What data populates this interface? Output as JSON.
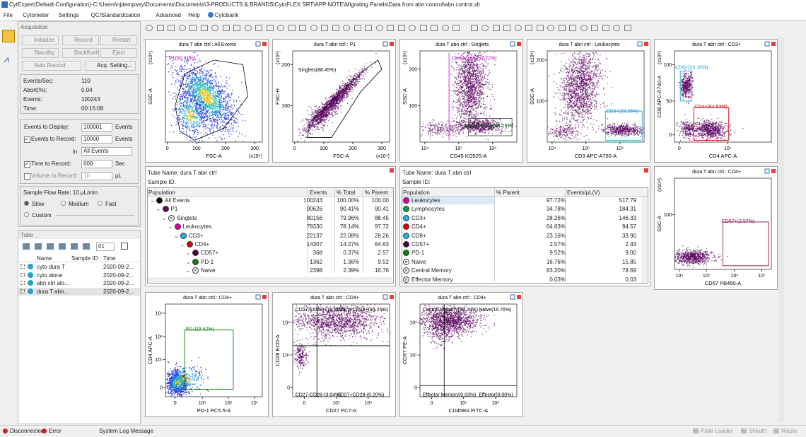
{
  "title_bar": "CytExpert(Default-Configuration)-C:\\Users\\njdempsey\\Documents\\Documents\\3-PRODUCTS & BRANDS\\CytoFLEX SRT\\APP NOTE\\Migrating Panels\\Data from abn control\\abn control.xlt",
  "menu": [
    "File",
    "Cytometer",
    "Settings",
    "QC/Standardization",
    "Advanced",
    "Help",
    "Cytobank"
  ],
  "acquisition": {
    "title": "Acquisition",
    "buttons": [
      "Initialize",
      "Record",
      "Restart",
      "Standby",
      "Backflush",
      "Eject",
      "Auto Record",
      "Acq. Setting..."
    ],
    "stats": [
      {
        "label": "Events/Sec:",
        "value": "110"
      },
      {
        "label": "Abort(%):",
        "value": "0.04"
      },
      {
        "label": "Events:",
        "value": "100243"
      },
      {
        "label": "Time:",
        "value": "00:15:08"
      }
    ],
    "events_to_display": {
      "label": "Events to Display:",
      "value": "100001",
      "unit": "Events"
    },
    "events_to_record": {
      "label": "Events to Record:",
      "value": "10000",
      "unit": "Events"
    },
    "record_in": {
      "label": "in",
      "value": "All Events"
    },
    "time_to_record": {
      "label": "Time to Record:",
      "value": "600",
      "unit": "Sec"
    },
    "volume_to_record": {
      "label": "Volume to Record:",
      "value": "10",
      "unit": "μL"
    },
    "flow_rate": "Sample Flow Rate:  10 μL/min",
    "flow_options": [
      "Slow",
      "Medium",
      "Fast",
      "Custom"
    ]
  },
  "tube": {
    "title": "Tube",
    "selector": "01",
    "columns": [
      "Name",
      "Sample ID",
      "Time"
    ],
    "rows": [
      {
        "name": "cyto dura T",
        "time": "2020-09-2..."
      },
      {
        "name": "cyto alone",
        "time": "2020-09-2..."
      },
      {
        "name": "abn ctrl alo...",
        "time": "2020-09-2..."
      },
      {
        "name": "dura T abn...",
        "time": "2020-09-2..."
      }
    ]
  },
  "plots": [
    {
      "title": "dura T abn ctrl : All Events",
      "gates": [
        "P1(90.41%)"
      ],
      "x_label": "FSC-A",
      "y_label": "SSC-A",
      "x_ticks": [
        "0",
        "100",
        "200",
        "300"
      ],
      "x_exp": "(x10⁴)",
      "y_exp": "(x10⁴)"
    },
    {
      "title": "dura T abn ctrl : P1",
      "gates": [
        "Singlets(88.45%)"
      ],
      "x_label": "FSC-A",
      "y_label": "FSC-H",
      "x_ticks": [
        "0",
        "100",
        "200",
        "300"
      ],
      "y_ticks": [
        "100",
        "200"
      ],
      "x_exp": "(x10⁴)",
      "y_exp": "(x10⁴)"
    },
    {
      "title": "dura T abn ctrl : Singlets",
      "gates": [
        "Leukocytes(97.72%)",
        "Lymphocytes(34.78%)"
      ],
      "x_label": "CD45 KO525-A",
      "y_label": "SSC-A",
      "x_ticks": [
        "10⁴",
        "10⁵",
        "10⁶"
      ],
      "y_ticks": [
        "100",
        "200"
      ],
      "y_exp": "(x10⁴)"
    },
    {
      "title": "dura T abn ctrl : Leukocytes",
      "gates": [
        "CD3+(28.26%)"
      ],
      "x_label": "CD3 APC-A750-A",
      "y_label": "SSC-A",
      "x_ticks": [
        "10⁴",
        "10⁵",
        "10⁶"
      ],
      "y_ticks": [
        "100",
        "200"
      ],
      "y_exp": "(x10⁴)"
    },
    {
      "title": "dura T abn ctrl : CD3+",
      "gates": [
        "CD8+(23.16%)",
        "CD4+(64.63%)"
      ],
      "x_label": "CD4 APC-A",
      "y_label": "CD8 APC-A700-A",
      "x_ticks": [
        "0",
        "10⁵"
      ],
      "y_ticks": [
        "0",
        "50",
        "100"
      ],
      "y_exp": "(x10⁴)"
    },
    {
      "title": "dura T abn ctrl : CD4+",
      "gates": [
        "CD57+(2.57%)"
      ],
      "x_label": "CD57 PB450-A",
      "y_label": "SSC-A",
      "x_ticks": [
        "10⁴",
        "10⁵",
        "10⁶",
        "10⁷"
      ],
      "y_ticks": [
        "100"
      ],
      "y_exp": "(x10⁴)"
    },
    {
      "title": "dura T abn ctrl : CD4+",
      "gates": [
        "PD-1(9.52%)"
      ],
      "x_label": "PD-1 PC5.5-A",
      "y_label": "CD4 APC-A",
      "x_ticks": [
        "0",
        "10⁵",
        "10⁶",
        "10⁷"
      ],
      "y_ticks": [
        "0",
        "10⁵",
        "10⁶",
        "10⁷"
      ]
    },
    {
      "title": "dura T abn ctrl : CD4+",
      "gates": [
        "CD27-CD28+(13.51%)",
        "CD27+CD28+(83.25%)",
        "CD27-CD28-(3.04%)",
        "CD27+CD28-(0.20%)"
      ],
      "x_label": "CD27 PC7-A",
      "y_label": "CD28 ECD-A",
      "x_ticks": [
        "0",
        "10⁵",
        "10⁶"
      ],
      "y_ticks": [
        "0",
        "10⁵",
        "10⁶"
      ]
    },
    {
      "title": "dura T abn ctrl : CD4+",
      "gates": [
        "Central Memory(83.20%)",
        "Naive(16.76%)",
        "Effector Memory(0.03%)",
        "Effector(0.00%)"
      ],
      "x_label": "CD45RA FITC-A",
      "y_label": "CCR7 PE-A",
      "x_ticks": [
        "0",
        "10⁵",
        "10⁶"
      ],
      "y_ticks": [
        "0",
        "10⁵",
        "10⁶"
      ]
    }
  ],
  "tables": [
    {
      "tube_label": "Tube Name:  dura T abn ctrl",
      "sample_label": "Sample ID:",
      "columns": [
        "Population",
        "Events",
        "% Total",
        "% Parent"
      ],
      "rows": [
        [
          "All Events",
          "100243",
          "100.00%",
          "100.00"
        ],
        [
          "P1",
          "90626",
          "90.41%",
          "90.41"
        ],
        [
          "Singlets",
          "80156",
          "79.96%",
          "88.45"
        ],
        [
          "Leukocytes",
          "78330",
          "78.14%",
          "97.72"
        ],
        [
          "CD3+",
          "22137",
          "22.08%",
          "28.26"
        ],
        [
          "CD4+",
          "14307",
          "14.27%",
          "64.63"
        ],
        [
          "CD57+",
          "368",
          "0.37%",
          "2.57"
        ],
        [
          "PD-1",
          "1362",
          "1.36%",
          "9.52"
        ],
        [
          "Naive",
          "2398",
          "2.39%",
          "16.76"
        ]
      ]
    },
    {
      "tube_label": "Tube Name:  dura T abn ctrl",
      "sample_label": "Sample ID:",
      "columns": [
        "Population",
        "% Parent",
        "Events/μL(V)"
      ],
      "rows": [
        [
          "Leukocytes",
          "97.72%",
          "517.79"
        ],
        [
          "Lymphocytes",
          "34.78%",
          "184.31"
        ],
        [
          "CD3+",
          "28.26%",
          "146.33"
        ],
        [
          "CD4+",
          "64.63%",
          "94.57"
        ],
        [
          "CD8+",
          "23.16%",
          "33.90"
        ],
        [
          "CD57+",
          "2.57%",
          "2.43"
        ],
        [
          "PD-1",
          "9.52%",
          "9.00"
        ],
        [
          "Naive",
          "16.76%",
          "15.85"
        ],
        [
          "Central Memory",
          "83.20%",
          "78.69"
        ],
        [
          "Effector Memory",
          "0.03%",
          "0.03"
        ]
      ]
    }
  ],
  "status": [
    "Disconnected",
    "Error",
    "System Log Message",
    "Plate Loader",
    "Sheath",
    "Waste"
  ]
}
